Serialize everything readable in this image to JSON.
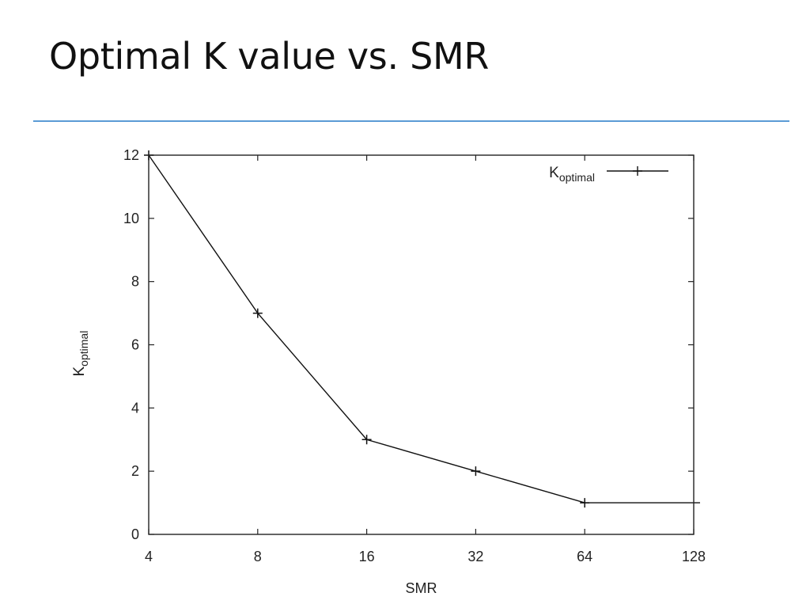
{
  "slide": {
    "title": "Optimal K value vs. SMR",
    "rule_color": "#5b9bd5"
  },
  "chart_data": {
    "type": "line",
    "x_scale": "log2",
    "x": [
      4,
      8,
      16,
      32,
      64,
      128
    ],
    "x_tick_labels": [
      "4",
      "8",
      "16",
      "32",
      "64",
      "128"
    ],
    "y_ticks": [
      0,
      2,
      4,
      6,
      8,
      10,
      12
    ],
    "xlim": [
      4,
      128
    ],
    "ylim": [
      0,
      12
    ],
    "xlabel": "SMR",
    "ylabel": {
      "main": "K",
      "sub": "optimal"
    },
    "grid": false,
    "legend_position": "top-right",
    "series": [
      {
        "name": {
          "main": "K",
          "sub": "optimal"
        },
        "x": [
          4,
          8,
          16,
          32,
          64,
          128
        ],
        "values": [
          12,
          7,
          3,
          2,
          1,
          1
        ],
        "markers": [
          true,
          true,
          true,
          true,
          true,
          false
        ],
        "color": "#111111"
      }
    ]
  }
}
